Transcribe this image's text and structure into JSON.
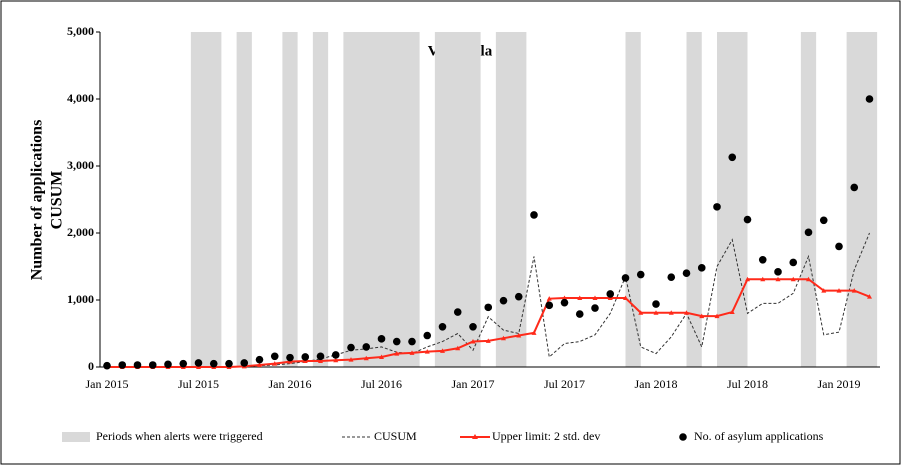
{
  "chart_data": {
    "type": "combo",
    "title": "Venezuela",
    "y_label_lines": [
      "Number of applications",
      "CUSUM"
    ],
    "categories": [
      "Jan 2015",
      null,
      null,
      null,
      null,
      null,
      "Jul 2015",
      null,
      null,
      null,
      null,
      null,
      "Jan 2016",
      null,
      null,
      null,
      null,
      null,
      "Jul 2016",
      null,
      null,
      null,
      null,
      null,
      "Jan 2017",
      null,
      null,
      null,
      null,
      null,
      "Jul 2017",
      null,
      null,
      null,
      null,
      null,
      "Jan 2018",
      null,
      null,
      null,
      null,
      null,
      "Jul 2018",
      null,
      null,
      null,
      null,
      null,
      "Jan 2019",
      null,
      null
    ],
    "alert_periods_name": "Periods when alerts were triggered",
    "alert_periods_color": "#d9d9d9",
    "alert_periods": [
      [
        5.5,
        7.5
      ],
      [
        8.5,
        9.5
      ],
      [
        11.5,
        12.5
      ],
      [
        13.5,
        14.5
      ],
      [
        15.5,
        20.5
      ],
      [
        21.5,
        24.5
      ],
      [
        25.5,
        27.5
      ],
      [
        34,
        35
      ],
      [
        38,
        39
      ],
      [
        40,
        42
      ],
      [
        45.5,
        46.5
      ],
      [
        48.5,
        50.5
      ]
    ],
    "series": [
      {
        "name": "CUSUM",
        "style": "dashed",
        "color": "#333333",
        "values": [
          0,
          0,
          0,
          0,
          0,
          0,
          0,
          0,
          0,
          0,
          20,
          30,
          50,
          80,
          120,
          180,
          250,
          270,
          300,
          220,
          200,
          300,
          380,
          500,
          250,
          750,
          550,
          500,
          1650,
          150,
          350,
          380,
          480,
          800,
          1350,
          300,
          200,
          450,
          800,
          300,
          1500,
          1900,
          800,
          950,
          950,
          1100,
          1650,
          480,
          520,
          1450,
          2000
        ]
      },
      {
        "name": "Upper limit: 2 std. dev",
        "style": "line-marker",
        "color": "#ff2a1a",
        "values": [
          0,
          0,
          0,
          0,
          0,
          0,
          0,
          0,
          0,
          10,
          30,
          50,
          80,
          90,
          90,
          100,
          110,
          130,
          150,
          200,
          210,
          230,
          240,
          280,
          380,
          390,
          430,
          470,
          510,
          1020,
          1030,
          1030,
          1030,
          1030,
          1030,
          810,
          810,
          810,
          810,
          760,
          760,
          820,
          1310,
          1310,
          1310,
          1310,
          1310,
          1140,
          1140,
          1140,
          1050
        ]
      },
      {
        "name": "No. of asylum applications",
        "style": "dots",
        "color": "#000000",
        "values": [
          20,
          30,
          30,
          30,
          40,
          50,
          60,
          50,
          50,
          60,
          110,
          160,
          140,
          150,
          160,
          180,
          290,
          300,
          420,
          380,
          380,
          470,
          600,
          820,
          600,
          890,
          990,
          1050,
          2270,
          920,
          960,
          790,
          880,
          1090,
          1330,
          1380,
          940,
          1340,
          1400,
          1480,
          2390,
          3130,
          2200,
          1600,
          1420,
          1560,
          2010,
          2190,
          1800,
          2680,
          4000
        ]
      }
    ],
    "ylim": [
      0,
      5000
    ],
    "yticks": [
      0,
      {
        "value": 1000,
        "label": "1,000"
      },
      {
        "value": 2000,
        "label": "2,000"
      },
      {
        "value": 3000,
        "label": "3,000"
      },
      {
        "value": 4000,
        "label": "4,000"
      },
      {
        "value": 5000,
        "label": "5,000"
      }
    ]
  }
}
